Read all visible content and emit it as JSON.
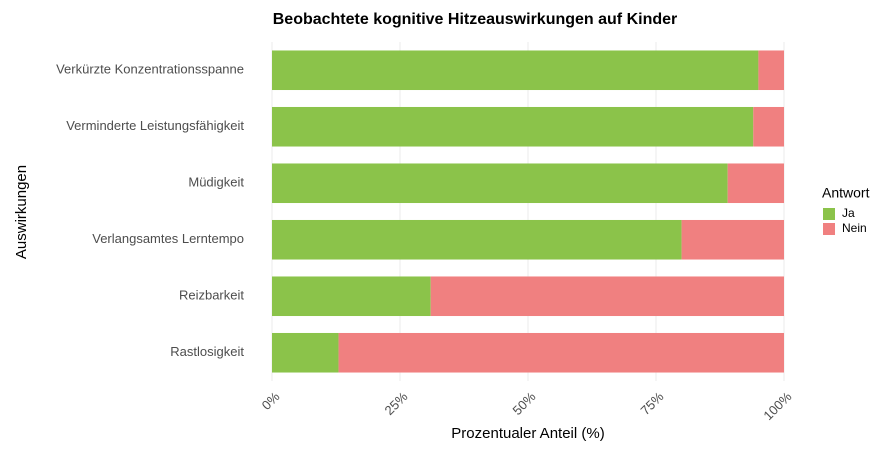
{
  "chart_data": {
    "type": "stacked_barh",
    "title": "Beobachtete kognitive Hitzeauswirkungen auf Kinder",
    "x_label": "Prozentualer Anteil (%)",
    "y_label": "Auswirkungen",
    "legend_title": "Antwort",
    "legend": "right",
    "grid": true,
    "categories": [
      "Verkürzte Konzentrationsspanne",
      "Verminderte Leistungsfähigkeit",
      "Müdigkeit",
      "Verlangsamtes Lerntempo",
      "Reizbarkeit",
      "Rastlosigkeit"
    ],
    "series": [
      {
        "name": "Ja",
        "color": "#8bc34a",
        "values": [
          95,
          94,
          89,
          80,
          31,
          13
        ]
      },
      {
        "name": "Nein",
        "color": "#f08080",
        "values": [
          5,
          6,
          11,
          20,
          69,
          87
        ]
      }
    ],
    "xlim": [
      0,
      100
    ],
    "xticks": [
      {
        "value": 0,
        "label": "0%"
      },
      {
        "value": 25,
        "label": "25%"
      },
      {
        "value": 50,
        "label": "50%"
      },
      {
        "value": 75,
        "label": "75%"
      },
      {
        "value": 100,
        "label": "100%"
      }
    ]
  }
}
